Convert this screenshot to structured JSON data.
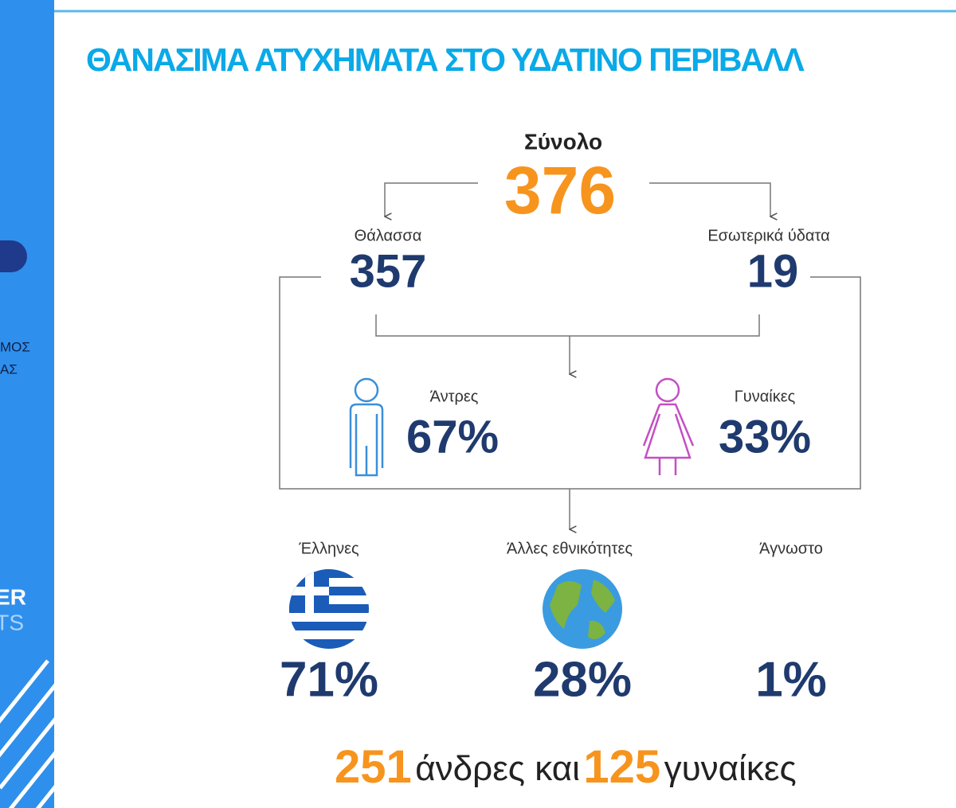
{
  "sidebar": {
    "line1": "ΜΟΣ",
    "line2": "ΑΣ",
    "logo1": "ER",
    "logo2": "TS"
  },
  "header": {
    "title": "ΘΑΝΑΣΙΜΑ ΑΤΥΧΗΜΑΤΑ ΣΤΟ ΥΔΑΤΙΝΟ ΠΕΡΙΒΑΛΛ"
  },
  "total": {
    "label": "Σύνολο",
    "value": 376
  },
  "sea": {
    "label": "Θάλασσα",
    "value": 357
  },
  "inland": {
    "label": "Εσωτερικά ύδατα",
    "value": 19
  },
  "men": {
    "label": "Άντρες",
    "value": "67%"
  },
  "women": {
    "label": "Γυναίκες",
    "value": "33%"
  },
  "nationality": [
    {
      "label": "Έλληνες",
      "value": "71%"
    },
    {
      "label": "Άλλες εθνικότητες",
      "value": "28%"
    },
    {
      "label": "Άγνωστο",
      "value": "1%"
    }
  ],
  "summary": {
    "men_count": 251,
    "men_text": "άνδρες και",
    "women_count": 125,
    "women_text": "γυναίκες"
  }
}
